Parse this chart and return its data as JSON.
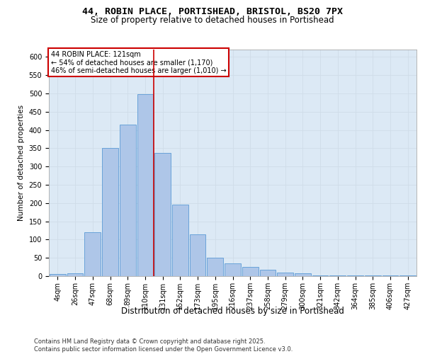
{
  "title_line1": "44, ROBIN PLACE, PORTISHEAD, BRISTOL, BS20 7PX",
  "title_line2": "Size of property relative to detached houses in Portishead",
  "xlabel": "Distribution of detached houses by size in Portishead",
  "ylabel": "Number of detached properties",
  "categories": [
    "4sqm",
    "26sqm",
    "47sqm",
    "68sqm",
    "89sqm",
    "110sqm",
    "131sqm",
    "152sqm",
    "173sqm",
    "195sqm",
    "216sqm",
    "237sqm",
    "258sqm",
    "279sqm",
    "300sqm",
    "321sqm",
    "342sqm",
    "364sqm",
    "385sqm",
    "406sqm",
    "427sqm"
  ],
  "values": [
    5,
    8,
    120,
    350,
    415,
    498,
    338,
    195,
    115,
    50,
    35,
    25,
    17,
    10,
    8,
    2,
    2,
    1,
    2,
    1,
    2
  ],
  "bar_color": "#aec6e8",
  "bar_edge_color": "#5b9bd5",
  "vline_index": 5,
  "vline_color": "#cc0000",
  "annotation_text": "44 ROBIN PLACE: 121sqm\n← 54% of detached houses are smaller (1,170)\n46% of semi-detached houses are larger (1,010) →",
  "annotation_box_color": "#ffffff",
  "annotation_box_edge": "#cc0000",
  "grid_color": "#d0dce8",
  "bg_color": "#dce9f5",
  "ylim": [
    0,
    620
  ],
  "yticks": [
    0,
    50,
    100,
    150,
    200,
    250,
    300,
    350,
    400,
    450,
    500,
    550,
    600
  ],
  "footer": "Contains HM Land Registry data © Crown copyright and database right 2025.\nContains public sector information licensed under the Open Government Licence v3.0.",
  "title1_fontsize": 9.5,
  "title2_fontsize": 8.5,
  "ylabel_fontsize": 7.5,
  "xlabel_fontsize": 8.5,
  "tick_fontsize": 7,
  "footer_fontsize": 6
}
